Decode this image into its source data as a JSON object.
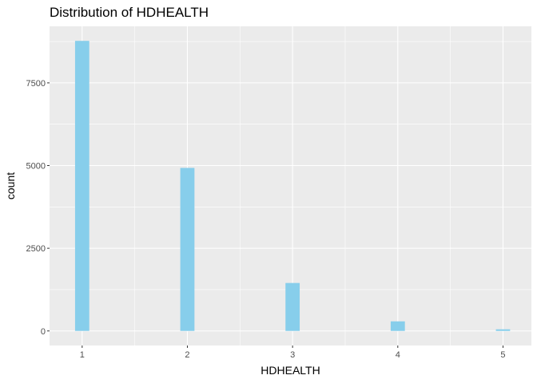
{
  "chart_data": {
    "type": "bar",
    "title": "Distribution of HDHEALTH",
    "xlabel": "HDHEALTH",
    "ylabel": "count",
    "x": [
      1,
      2,
      3,
      4,
      5
    ],
    "values": [
      8770,
      4930,
      1450,
      290,
      50
    ],
    "x_ticks": [
      "1",
      "2",
      "3",
      "4",
      "5"
    ],
    "y_ticks": [
      "0",
      "2500",
      "5000",
      "7500"
    ],
    "ylim": [
      -440,
      9210
    ],
    "xlim": [
      0.69,
      5.27
    ],
    "grid": true,
    "bar_color": "#87CEEB",
    "panel_color": "#EBEBEB",
    "grid_color": "#FFFFFF"
  }
}
